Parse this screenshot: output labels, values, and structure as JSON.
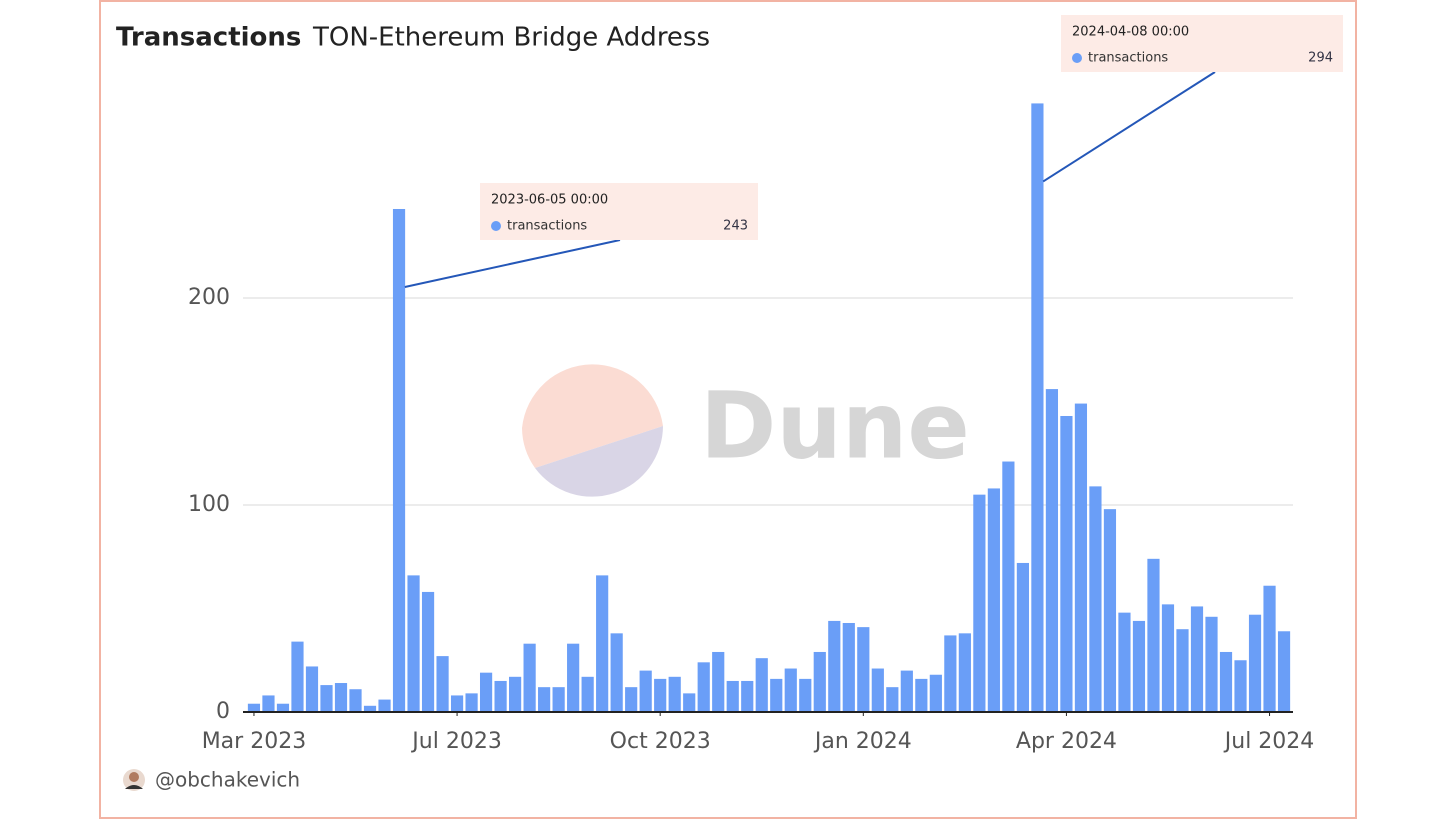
{
  "chart_data": {
    "type": "bar",
    "title": "Transactions",
    "subtitle": "TON-Ethereum Bridge Address",
    "series": [
      {
        "name": "transactions",
        "color": "#6a9ef7",
        "values": [
          4,
          8,
          4,
          34,
          22,
          13,
          14,
          11,
          3,
          6,
          243,
          66,
          58,
          27,
          8,
          9,
          19,
          15,
          17,
          33,
          12,
          12,
          33,
          17,
          66,
          38,
          12,
          20,
          16,
          17,
          9,
          24,
          29,
          15,
          15,
          26,
          16,
          21,
          16,
          29,
          44,
          43,
          41,
          21,
          12,
          20,
          16,
          18,
          37,
          38,
          105,
          108,
          121,
          72,
          294,
          156,
          143,
          149,
          109,
          98,
          48,
          44,
          74,
          52,
          40,
          51,
          46,
          29,
          25,
          47,
          61,
          39
        ]
      }
    ],
    "xlim": [
      -0.5,
      71.5
    ],
    "xticks": [
      {
        "value": 0,
        "label": "Mar 2023"
      },
      {
        "value": 14,
        "label": "Jul 2023"
      },
      {
        "value": 28,
        "label": "Oct 2023"
      },
      {
        "value": 42,
        "label": "Jan 2024"
      },
      {
        "value": 56,
        "label": "Apr 2024"
      },
      {
        "value": 70,
        "label": "Jul 2024"
      }
    ],
    "ylim": [
      0,
      300
    ],
    "yticks": [
      0,
      100,
      200
    ],
    "grid": true,
    "annotations": [
      {
        "x": 10,
        "date": "2023-06-05 00:00",
        "name": "transactions",
        "value": 243
      },
      {
        "x": 54,
        "date": "2024-04-08 00:00",
        "name": "transactions",
        "value": 294
      }
    ],
    "watermark": "Dune",
    "author": "@obchakevich"
  }
}
